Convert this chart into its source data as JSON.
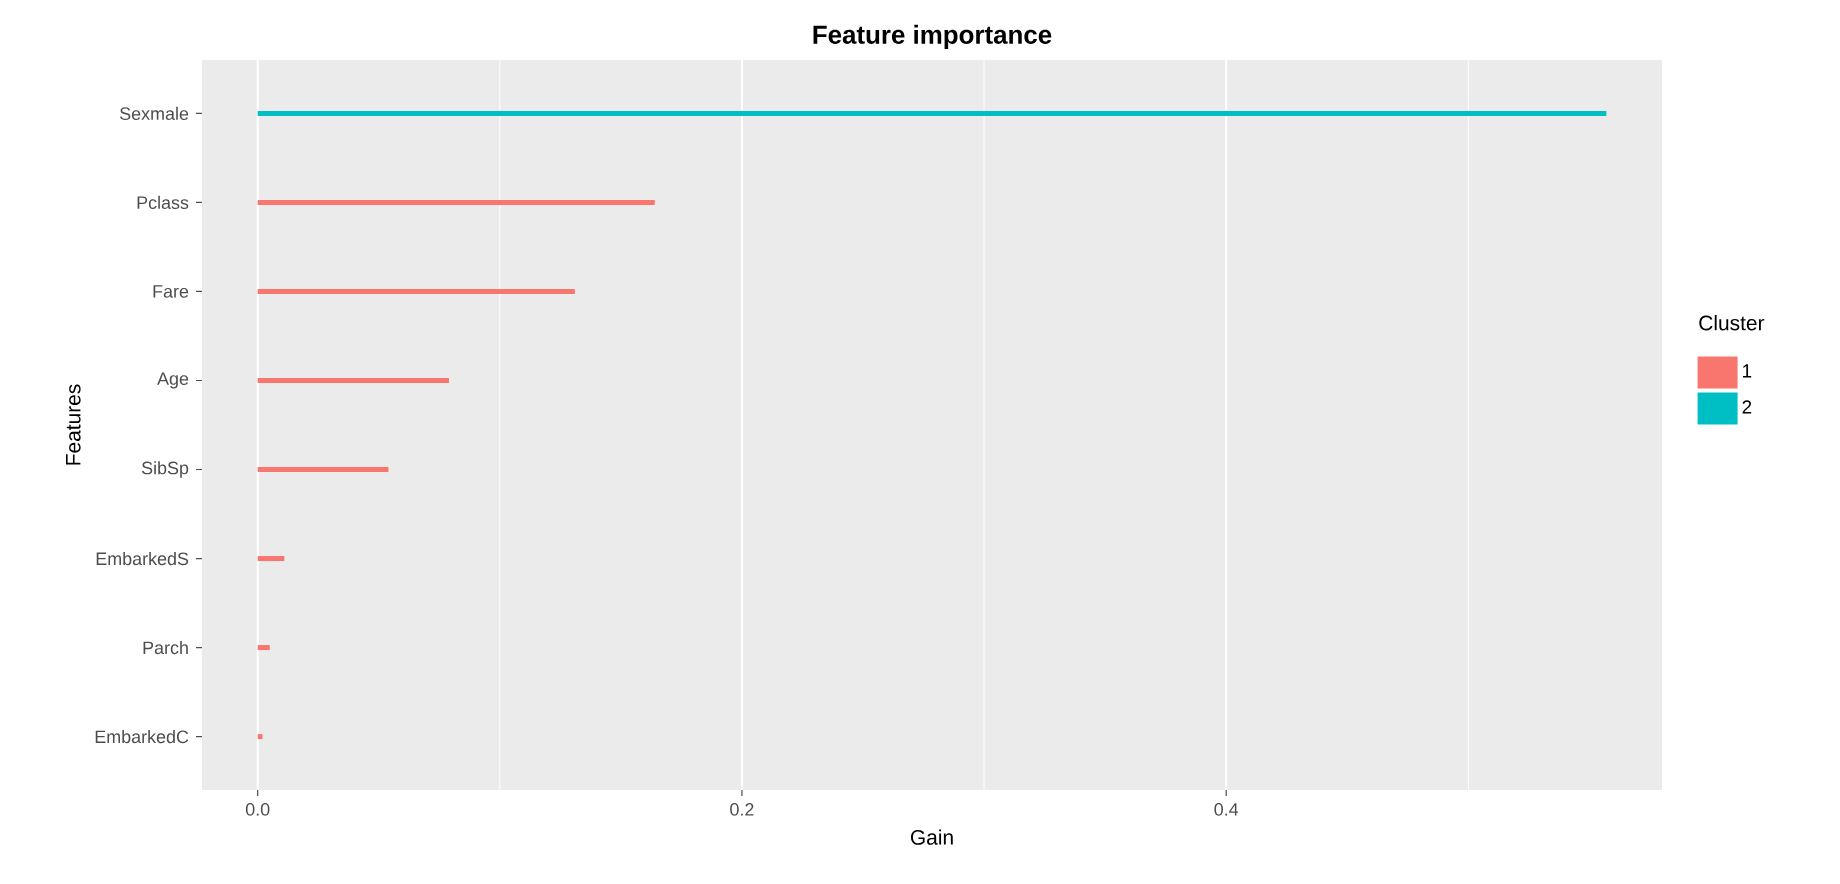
{
  "chart_data": {
    "type": "bar",
    "orientation": "horizontal",
    "title": "Feature importance",
    "xlabel": "Gain",
    "ylabel": "Features",
    "legend_title": "Cluster",
    "categories": [
      "Sexmale",
      "Pclass",
      "Fare",
      "Age",
      "SibSp",
      "EmbarkedS",
      "Parch",
      "EmbarkedC"
    ],
    "series": [
      {
        "name": "1",
        "color": "#f8766d",
        "values": [
          null,
          0.164,
          0.131,
          0.079,
          0.054,
          0.011,
          0.005,
          0.002
        ]
      },
      {
        "name": "2",
        "color": "#00bfc4",
        "values": [
          0.557,
          null,
          null,
          null,
          null,
          null,
          null,
          null
        ]
      }
    ],
    "xlim": [
      -0.023,
      0.58
    ],
    "xticks": [
      {
        "value": 0,
        "label": "0.0"
      },
      {
        "value": 0.2,
        "label": "0.2"
      },
      {
        "value": 0.4,
        "label": "0.4"
      }
    ],
    "grid": "x",
    "legend": "right"
  }
}
